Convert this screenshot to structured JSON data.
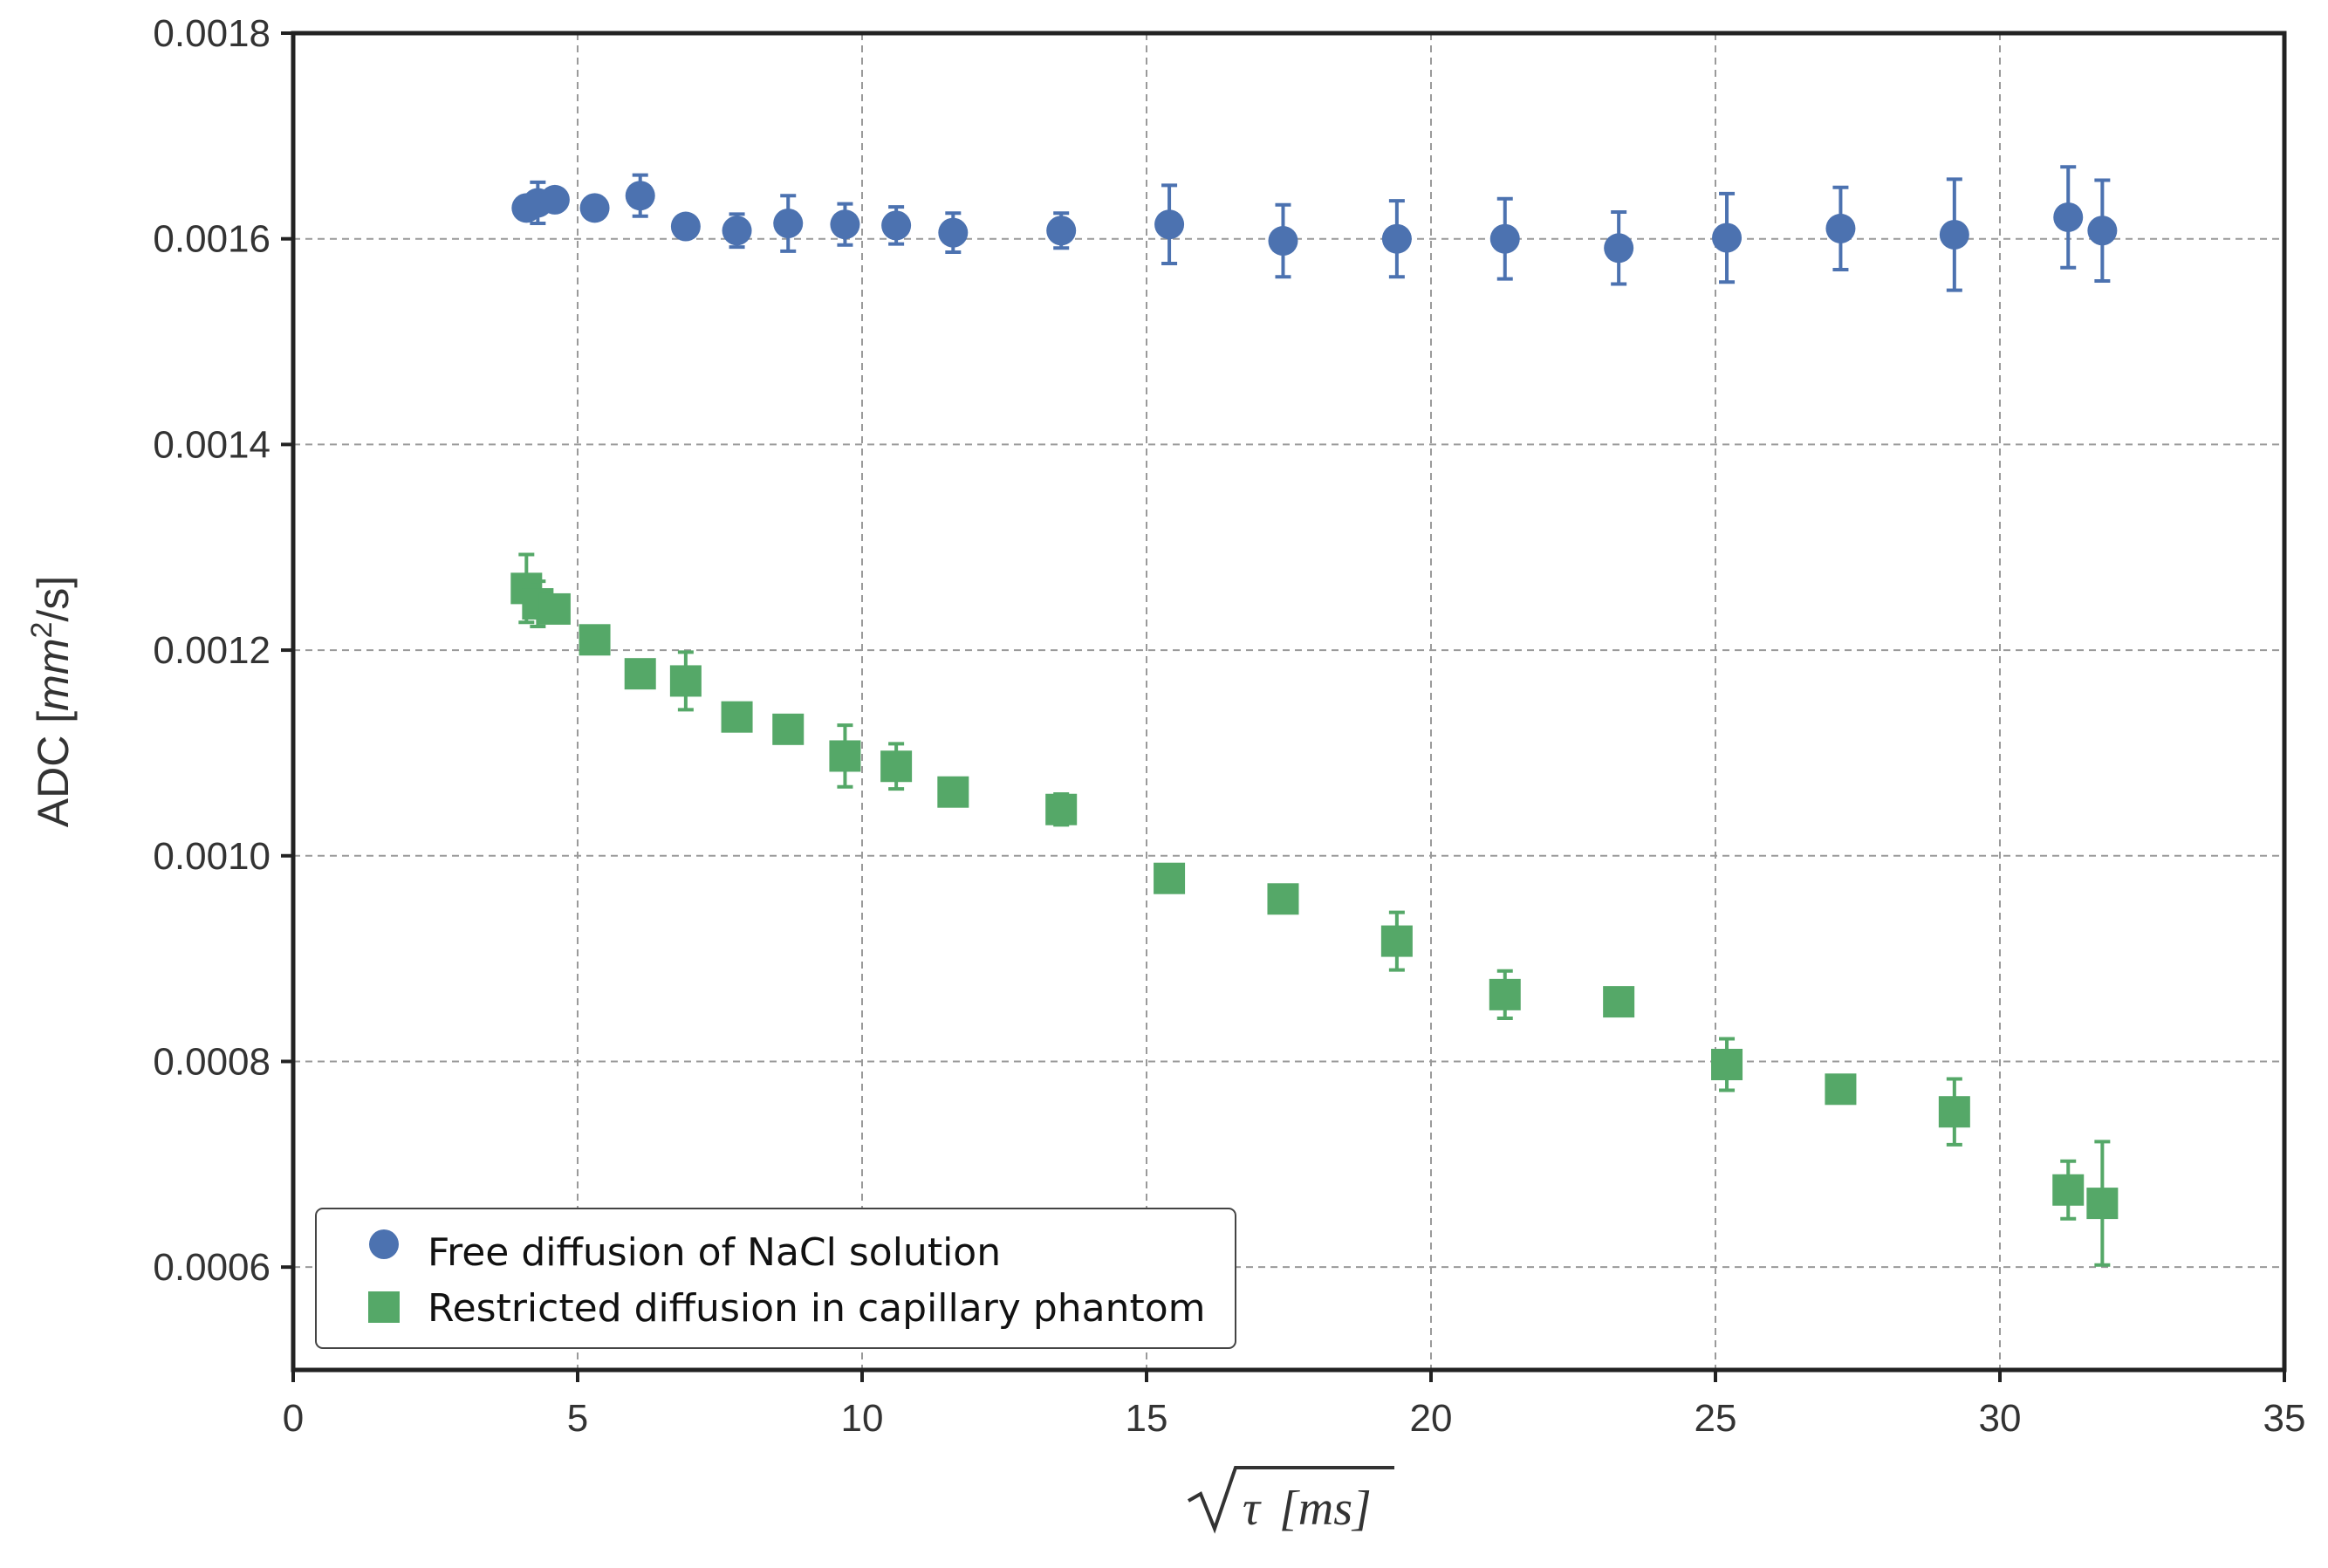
{
  "chart_data": {
    "type": "scatter",
    "title": "",
    "xlabel": "√τ [ms]",
    "xlabel_parts": {
      "root": "√",
      "symbol": "τ",
      "unit": "[ms]"
    },
    "ylabel": "ADC [mm²/s]",
    "ylabel_parts": {
      "prefix": "ADC [",
      "unit": "mm",
      "exponent": "2",
      "suffix": "/s]"
    },
    "xlim": [
      0,
      35
    ],
    "ylim": [
      0.0005,
      0.0018
    ],
    "xticks": [
      0,
      5,
      10,
      15,
      20,
      25,
      30,
      35
    ],
    "xtick_labels": [
      "0",
      "5",
      "10",
      "15",
      "20",
      "25",
      "30",
      "35"
    ],
    "yticks": [
      0.0006,
      0.0008,
      0.001,
      0.0012,
      0.0014,
      0.0016,
      0.0018
    ],
    "ytick_labels": [
      "0.0006",
      "0.0008",
      "0.0010",
      "0.0012",
      "0.0014",
      "0.0016",
      "0.0018"
    ],
    "grid": true,
    "legend_position": "bottom-left",
    "series": [
      {
        "name": "Free diffusion of NaCl solution",
        "marker": "circle",
        "color": "#4c72b0",
        "x": [
          4.1,
          4.3,
          4.6,
          5.3,
          6.1,
          6.9,
          7.8,
          8.7,
          9.7,
          10.6,
          11.6,
          13.5,
          15.4,
          17.4,
          19.4,
          21.3,
          23.3,
          25.2,
          27.2,
          29.2,
          31.2,
          31.8
        ],
        "y": [
          0.00163,
          0.001635,
          0.001638,
          0.00163,
          0.001642,
          0.001612,
          0.001608,
          0.001615,
          0.001614,
          0.001613,
          0.001606,
          0.001608,
          0.001614,
          0.001598,
          0.0016,
          0.0016,
          0.001591,
          0.001601,
          0.00161,
          0.001604,
          0.001621,
          0.001608
        ],
        "err": [
          4e-06,
          2e-05,
          8e-06,
          5e-06,
          2e-05,
          8e-06,
          1.6e-05,
          2.7e-05,
          2e-05,
          1.8e-05,
          1.9e-05,
          1.7e-05,
          3.8e-05,
          3.5e-05,
          3.7e-05,
          3.9e-05,
          3.5e-05,
          4.3e-05,
          4e-05,
          5.4e-05,
          4.9e-05,
          4.9e-05
        ]
      },
      {
        "name": "Restricted diffusion in capillary phantom",
        "marker": "square",
        "color": "#55a868",
        "x": [
          4.1,
          4.3,
          4.6,
          5.3,
          6.1,
          6.9,
          7.8,
          8.7,
          9.7,
          10.6,
          11.6,
          13.5,
          15.4,
          17.4,
          19.4,
          21.3,
          23.3,
          25.2,
          27.2,
          29.2,
          31.2,
          31.8
        ],
        "y": [
          0.00126,
          0.001245,
          0.00124,
          0.00121,
          0.001177,
          0.00117,
          0.001135,
          0.001123,
          0.001097,
          0.001087,
          0.001062,
          0.001045,
          0.000978,
          0.000958,
          0.000917,
          0.000865,
          0.000858,
          0.000797,
          0.000773,
          0.000751,
          0.000675,
          0.000662
        ],
        "err": [
          3.3e-05,
          2.2e-05,
          1e-05,
          5e-06,
          5e-06,
          2.8e-05,
          5e-06,
          5e-06,
          3e-05,
          2.2e-05,
          5e-06,
          1.5e-05,
          5e-06,
          1e-05,
          2.8e-05,
          2.3e-05,
          5e-06,
          2.5e-05,
          8e-06,
          3.2e-05,
          2.8e-05,
          6e-05
        ]
      }
    ]
  }
}
